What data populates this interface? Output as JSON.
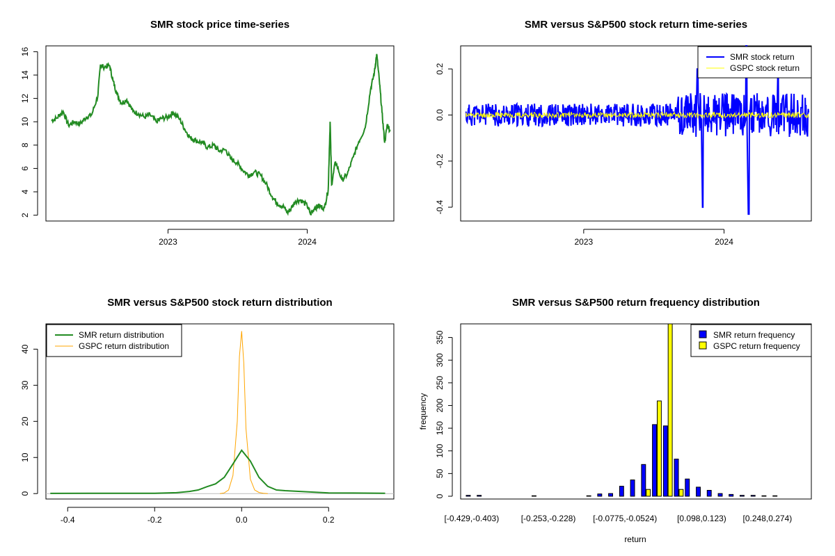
{
  "colors": {
    "smr_price": "#228B22",
    "smr_return": "#0000FF",
    "gspc_return": "#FFFF00",
    "smr_density": "#228B22",
    "gspc_density": "#FFA500",
    "smr_freq": "#0000FF",
    "gspc_freq": "#FFFF00"
  },
  "chart_data": [
    {
      "type": "line",
      "title": "SMR stock price time-series",
      "xlabel": "",
      "ylabel": "",
      "x_ticks": [
        "2023",
        "2024"
      ],
      "xlim": [
        "2022-02-15",
        "2024-08-15"
      ],
      "ylim": [
        1.5,
        16.5
      ],
      "y_ticks": [
        2,
        4,
        6,
        8,
        10,
        12,
        14,
        16
      ],
      "series": [
        {
          "values_by_date": [
            [
              "2022-03-01",
              10.1
            ],
            [
              "2022-03-15",
              10.3
            ],
            [
              "2022-04-01",
              10.9
            ],
            [
              "2022-04-15",
              9.7
            ],
            [
              "2022-05-01",
              10.0
            ],
            [
              "2022-05-15",
              9.8
            ],
            [
              "2022-06-01",
              10.4
            ],
            [
              "2022-06-15",
              10.6
            ],
            [
              "2022-07-01",
              12.2
            ],
            [
              "2022-07-08",
              14.9
            ],
            [
              "2022-07-15",
              14.7
            ],
            [
              "2022-08-01",
              14.8
            ],
            [
              "2022-08-10",
              13.5
            ],
            [
              "2022-08-20",
              12.4
            ],
            [
              "2022-09-01",
              11.6
            ],
            [
              "2022-09-15",
              11.9
            ],
            [
              "2022-10-01",
              10.9
            ],
            [
              "2022-10-15",
              10.7
            ],
            [
              "2022-11-01",
              10.4
            ],
            [
              "2022-11-15",
              10.6
            ],
            [
              "2022-12-01",
              10.0
            ],
            [
              "2022-12-15",
              10.3
            ],
            [
              "2023-01-01",
              10.4
            ],
            [
              "2023-01-15",
              10.8
            ],
            [
              "2023-02-01",
              10.2
            ],
            [
              "2023-02-15",
              9.3
            ],
            [
              "2023-03-01",
              8.6
            ],
            [
              "2023-03-15",
              8.4
            ],
            [
              "2023-04-01",
              8.2
            ],
            [
              "2023-04-15",
              7.8
            ],
            [
              "2023-05-01",
              8.0
            ],
            [
              "2023-05-15",
              7.5
            ],
            [
              "2023-06-01",
              7.6
            ],
            [
              "2023-06-15",
              6.8
            ],
            [
              "2023-07-01",
              6.5
            ],
            [
              "2023-07-15",
              5.9
            ],
            [
              "2023-08-01",
              5.4
            ],
            [
              "2023-08-15",
              5.7
            ],
            [
              "2023-09-01",
              5.4
            ],
            [
              "2023-09-15",
              4.7
            ],
            [
              "2023-10-01",
              3.6
            ],
            [
              "2023-10-15",
              3.0
            ],
            [
              "2023-11-01",
              2.7
            ],
            [
              "2023-11-10",
              2.2
            ],
            [
              "2023-11-20",
              2.6
            ],
            [
              "2023-12-01",
              3.2
            ],
            [
              "2023-12-15",
              3.3
            ],
            [
              "2024-01-01",
              2.8
            ],
            [
              "2024-01-10",
              2.1
            ],
            [
              "2024-01-20",
              2.6
            ],
            [
              "2024-02-01",
              2.8
            ],
            [
              "2024-02-15",
              2.6
            ],
            [
              "2024-02-25",
              4.2
            ],
            [
              "2024-03-01",
              10.0
            ],
            [
              "2024-03-05",
              4.6
            ],
            [
              "2024-03-15",
              6.6
            ],
            [
              "2024-04-01",
              5.0
            ],
            [
              "2024-04-15",
              5.5
            ],
            [
              "2024-05-01",
              7.0
            ],
            [
              "2024-05-15",
              8.3
            ],
            [
              "2024-06-01",
              9.5
            ],
            [
              "2024-06-15",
              12.8
            ],
            [
              "2024-06-25",
              14.2
            ],
            [
              "2024-07-01",
              15.8
            ],
            [
              "2024-07-08",
              13.5
            ],
            [
              "2024-07-15",
              10.8
            ],
            [
              "2024-07-22",
              8.2
            ],
            [
              "2024-07-29",
              9.8
            ],
            [
              "2024-08-05",
              9.2
            ]
          ]
        }
      ]
    },
    {
      "type": "line",
      "title": "SMR versus S&P500 stock return time-series",
      "xlabel": "",
      "ylabel": "",
      "x_ticks": [
        "2023",
        "2024"
      ],
      "xlim": [
        "2022-02-15",
        "2024-08-15"
      ],
      "ylim": [
        -0.46,
        0.3
      ],
      "y_ticks": [
        -0.4,
        -0.2,
        0.0,
        0.2
      ],
      "y_tick_labels": [
        "-0.4",
        "-0.2",
        "0.0",
        "0.2"
      ],
      "legend_position": "top-right",
      "series": [
        {
          "name": "SMR stock return",
          "typical_amplitude": 0.05,
          "spikes": [
            [
              "2023-11-06",
              -0.4
            ],
            [
              "2023-10-24",
              0.2
            ],
            [
              "2024-03-05",
              -0.43
            ],
            [
              "2024-02-28",
              0.3
            ],
            [
              "2024-05-20",
              0.2
            ]
          ]
        },
        {
          "name": "GSPC stock return",
          "typical_amplitude": 0.012
        }
      ]
    },
    {
      "type": "line",
      "title": "SMR versus S&P500 stock return distribution",
      "xlabel": "",
      "ylabel": "",
      "xlim": [
        -0.45,
        0.35
      ],
      "ylim": [
        -1.5,
        47
      ],
      "x_ticks": [
        -0.4,
        -0.2,
        0.0,
        0.2
      ],
      "x_tick_labels": [
        "-0.4",
        "-0.2",
        "0.0",
        "0.2"
      ],
      "y_ticks": [
        0,
        10,
        20,
        30,
        40
      ],
      "legend_position": "top-left",
      "series": [
        {
          "name": "SMR return distribution",
          "x": [
            -0.44,
            -0.3,
            -0.2,
            -0.15,
            -0.12,
            -0.1,
            -0.08,
            -0.06,
            -0.04,
            -0.02,
            0.0,
            0.02,
            0.04,
            0.06,
            0.08,
            0.1,
            0.15,
            0.2,
            0.33
          ],
          "y": [
            0.05,
            0.1,
            0.1,
            0.25,
            0.6,
            1.0,
            1.9,
            2.7,
            4.5,
            8.2,
            12.0,
            9.0,
            4.5,
            2.0,
            1.0,
            0.8,
            0.5,
            0.2,
            0.1
          ]
        },
        {
          "name": "GSPC return distribution",
          "x": [
            -0.05,
            -0.04,
            -0.03,
            -0.02,
            -0.01,
            -0.005,
            0.0,
            0.005,
            0.01,
            0.02,
            0.03,
            0.04,
            0.05,
            0.06
          ],
          "y": [
            0.0,
            0.2,
            1.0,
            5.0,
            20.0,
            38.0,
            45.0,
            36.0,
            18.0,
            4.0,
            1.0,
            0.3,
            0.1,
            0.0
          ]
        }
      ]
    },
    {
      "type": "bar",
      "title": "SMR versus S&P500 return frequency distribution",
      "xlabel": "return",
      "ylabel": "frequency",
      "ylim": [
        0,
        380
      ],
      "y_ticks": [
        0,
        50,
        100,
        150,
        200,
        250,
        300,
        350
      ],
      "category_tick_labels": [
        "[-0.429,-0.403)",
        "[-0.253,-0.228)",
        "[-0.0775,-0.0524)",
        "[0.098,0.123)",
        "[0.248,0.274)"
      ],
      "legend_position": "top-right",
      "series": [
        {
          "name": "SMR return frequency",
          "values": [
            2,
            2,
            0,
            0,
            0,
            0,
            1,
            0,
            0,
            0,
            0,
            1,
            5,
            6,
            22,
            36,
            70,
            158,
            155,
            82,
            38,
            20,
            13,
            6,
            4,
            2,
            2,
            1,
            1,
            0,
            0
          ]
        },
        {
          "name": "GSPC return frequency",
          "values": [
            0,
            0,
            0,
            0,
            0,
            0,
            0,
            0,
            0,
            0,
            0,
            0,
            0,
            0,
            0,
            0,
            15,
            210,
            380,
            15,
            0,
            0,
            0,
            0,
            0,
            0,
            0,
            0,
            0,
            0,
            0
          ]
        }
      ]
    }
  ]
}
